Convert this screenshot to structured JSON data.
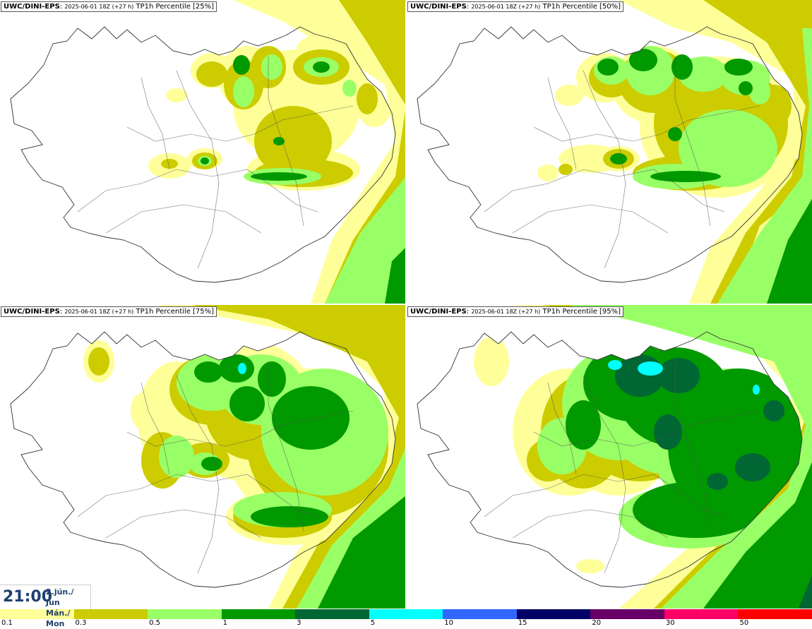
{
  "panels": [
    {
      "model": "UWC/DINI-EPS",
      "run": "2025-06-01 18Z (+27 h)",
      "field": "TP1h Percentile [25%]",
      "percentile": 25
    },
    {
      "model": "UWC/DINI-EPS",
      "run": "2025-06-01 18Z (+27 h)",
      "field": "TP1h Percentile [50%]",
      "percentile": 50
    },
    {
      "model": "UWC/DINI-EPS",
      "run": "2025-06-01 18Z (+27 h)",
      "field": "TP1h Percentile [75%]",
      "percentile": 75
    },
    {
      "model": "UWC/DINI-EPS",
      "run": "2025-06-01 18Z (+27 h)",
      "field": "TP1h Percentile [95%]",
      "percentile": 95
    }
  ],
  "valid_time": {
    "time": "21:00",
    "date": "2.jún./ Jun",
    "weekday": "Mán./ Mon"
  },
  "colorbar": {
    "labels": [
      "0.1",
      "0.3",
      "0.5",
      "1",
      "3",
      "5",
      "10",
      "15",
      "20",
      "30",
      "50"
    ],
    "colors": [
      "#ffff99",
      "#cccc00",
      "#99ff66",
      "#009900",
      "#006633",
      "#00ffff",
      "#3366ff",
      "#000066",
      "#660066",
      "#ff0066",
      "#ff0000"
    ]
  }
}
